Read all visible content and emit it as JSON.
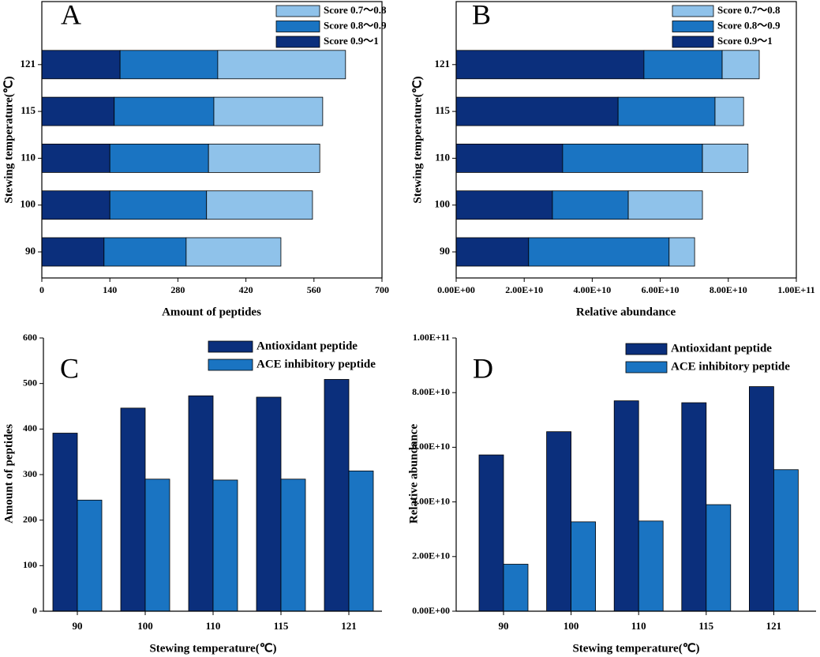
{
  "chart_data": [
    {
      "type": "bar",
      "orientation": "horizontal",
      "stacked": true,
      "label": "A",
      "xlabel": "Amount of peptides",
      "ylabel": "Stewing temperature(℃)",
      "categories": [
        "90",
        "100",
        "110",
        "115",
        "121"
      ],
      "series": [
        {
          "name": "Score 0.9～1",
          "color": "#0b2f7c",
          "values": [
            128,
            140,
            140,
            149,
            161
          ]
        },
        {
          "name": "Score 0.8～0.9",
          "color": "#1a74c2",
          "values": [
            169,
            199,
            203,
            205,
            201
          ]
        },
        {
          "name": "Score 0.7～0.8",
          "color": "#8fc2ea",
          "values": [
            195,
            218,
            229,
            224,
            263
          ]
        }
      ],
      "xlim": [
        0,
        700
      ],
      "xticks": [
        0,
        140,
        280,
        420,
        560,
        700
      ],
      "legend": "upper right"
    },
    {
      "type": "bar",
      "orientation": "horizontal",
      "stacked": true,
      "label": "B",
      "xlabel": "Relative abundance",
      "ylabel": "Stewing temperature(℃)",
      "categories": [
        "90",
        "100",
        "110",
        "115",
        "121"
      ],
      "series": [
        {
          "name": "Score 0.9～1",
          "color": "#0b2f7c",
          "values": [
            21300000000,
            28300000000,
            31300000000,
            47600000000,
            55200000000
          ]
        },
        {
          "name": "Score 0.8～0.9",
          "color": "#1a74c2",
          "values": [
            41300000000,
            22300000000,
            41100000000,
            28500000000,
            23000000000
          ]
        },
        {
          "name": "Score 0.7～0.8",
          "color": "#8fc2ea",
          "values": [
            7500000000,
            21800000000,
            13400000000,
            8400000000,
            10900000000
          ]
        }
      ],
      "xlim": [
        0,
        100000000000
      ],
      "xticks": [
        {
          "value": 0,
          "label": "0.00E+00"
        },
        {
          "value": 20000000000,
          "label": "2.00E+10"
        },
        {
          "value": 40000000000,
          "label": "4.00E+10"
        },
        {
          "value": 60000000000,
          "label": "6.00E+10"
        },
        {
          "value": 80000000000,
          "label": "8.00E+10"
        },
        {
          "value": 100000000000,
          "label": "1.00E+11"
        }
      ],
      "legend": "upper right"
    },
    {
      "type": "bar",
      "orientation": "vertical",
      "stacked": false,
      "label": "C",
      "xlabel": "Stewing temperature(℃)",
      "ylabel": "Amount of peptides",
      "categories": [
        "90",
        "100",
        "110",
        "115",
        "121"
      ],
      "series": [
        {
          "name": "Antioxidant peptide",
          "color": "#0b2f7c",
          "values": [
            391,
            446,
            473,
            470,
            509
          ]
        },
        {
          "name": "ACE inhibitory peptide",
          "color": "#1a74c2",
          "values": [
            244,
            290,
            288,
            290,
            308
          ]
        }
      ],
      "ylim": [
        0,
        600
      ],
      "yticks": [
        0,
        100,
        200,
        300,
        400,
        500,
        600
      ],
      "legend": "upper center"
    },
    {
      "type": "bar",
      "orientation": "vertical",
      "stacked": false,
      "label": "D",
      "xlabel": "Stewing temperature(℃)",
      "ylabel": "Relative abundance",
      "categories": [
        "90",
        "100",
        "110",
        "115",
        "121"
      ],
      "series": [
        {
          "name": "Antioxidant peptide",
          "color": "#0b2f7c",
          "values": [
            57200000000,
            65700000000,
            77000000000,
            76300000000,
            82200000000
          ]
        },
        {
          "name": "ACE inhibitory peptide",
          "color": "#1a74c2",
          "values": [
            17200000000,
            32700000000,
            33000000000,
            39000000000,
            51800000000
          ]
        }
      ],
      "ylim": [
        0,
        100000000000
      ],
      "yticks": [
        {
          "value": 0,
          "label": "0.00E+00"
        },
        {
          "value": 20000000000,
          "label": "2.00E+10"
        },
        {
          "value": 40000000000,
          "label": "4.00E+10"
        },
        {
          "value": 60000000000,
          "label": "6.00E+10"
        },
        {
          "value": 80000000000,
          "label": "8.00E+10"
        },
        {
          "value": 100000000000,
          "label": "1.00E+11"
        }
      ],
      "legend": "upper center"
    }
  ]
}
